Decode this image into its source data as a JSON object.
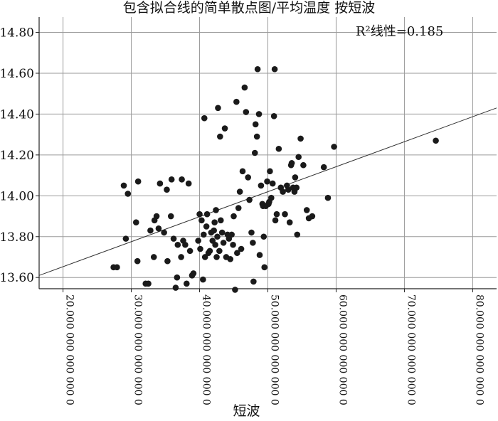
{
  "chart_data": {
    "type": "scatter",
    "title": "包含拟合线的简单散点图/平均温度 按短波",
    "xlabel": "短波",
    "ylabel": "",
    "xlim": [
      16500000000000,
      83500000000000
    ],
    "ylim": [
      13.545,
      14.875
    ],
    "x_ticks": [
      20000000000000,
      30000000000000,
      40000000000000,
      50000000000000,
      60000000000000,
      70000000000000,
      80000000000000
    ],
    "x_tick_labels": [
      "20.000 000 000 000 0",
      "30.000 000 000 000 0",
      "40.000 000 000 000 0",
      "50.000 000 000 000 0",
      "60.000 000 000 000 0",
      "70.000 000 000 000 0",
      "80.000 000 000 000 0"
    ],
    "y_ticks": [
      13.6,
      13.8,
      14.0,
      14.2,
      14.4,
      14.6,
      14.8
    ],
    "y_tick_labels": [
      "13.60",
      "13.80",
      "14.00",
      "14.20",
      "14.40",
      "14.60",
      "14.80"
    ],
    "grid": true,
    "fit_line": {
      "x": [
        16500000000000,
        83500000000000
      ],
      "y": [
        13.61,
        14.43
      ]
    },
    "annotation": "R²线性=0.185",
    "points": [
      {
        "x": 27400000000000,
        "y": 13.65
      },
      {
        "x": 27900000000000,
        "y": 13.65
      },
      {
        "x": 28900000000000,
        "y": 14.05
      },
      {
        "x": 29200000000000,
        "y": 13.79
      },
      {
        "x": 29500000000000,
        "y": 14.01
      },
      {
        "x": 30700000000000,
        "y": 13.87
      },
      {
        "x": 30900000000000,
        "y": 13.68
      },
      {
        "x": 31000000000000,
        "y": 14.07
      },
      {
        "x": 32100000000000,
        "y": 13.57
      },
      {
        "x": 32500000000000,
        "y": 13.57
      },
      {
        "x": 32800000000000,
        "y": 13.83
      },
      {
        "x": 33300000000000,
        "y": 13.7
      },
      {
        "x": 33400000000000,
        "y": 13.88
      },
      {
        "x": 33700000000000,
        "y": 13.9
      },
      {
        "x": 34000000000000,
        "y": 13.84
      },
      {
        "x": 34200000000000,
        "y": 14.06
      },
      {
        "x": 34800000000000,
        "y": 13.82
      },
      {
        "x": 35200000000000,
        "y": 14.03
      },
      {
        "x": 35300000000000,
        "y": 13.68
      },
      {
        "x": 35800000000000,
        "y": 13.9
      },
      {
        "x": 35900000000000,
        "y": 14.08
      },
      {
        "x": 36200000000000,
        "y": 13.79
      },
      {
        "x": 36500000000000,
        "y": 13.55
      },
      {
        "x": 36700000000000,
        "y": 13.6
      },
      {
        "x": 36800000000000,
        "y": 13.76
      },
      {
        "x": 37300000000000,
        "y": 13.7
      },
      {
        "x": 37400000000000,
        "y": 14.08
      },
      {
        "x": 37600000000000,
        "y": 13.78
      },
      {
        "x": 37900000000000,
        "y": 13.76
      },
      {
        "x": 38100000000000,
        "y": 13.57
      },
      {
        "x": 38400000000000,
        "y": 14.06
      },
      {
        "x": 38600000000000,
        "y": 13.73
      },
      {
        "x": 38900000000000,
        "y": 13.61
      },
      {
        "x": 39100000000000,
        "y": 13.62
      },
      {
        "x": 39800000000000,
        "y": 13.78
      },
      {
        "x": 40000000000000,
        "y": 13.91
      },
      {
        "x": 40100000000000,
        "y": 13.74
      },
      {
        "x": 40300000000000,
        "y": 13.88
      },
      {
        "x": 40500000000000,
        "y": 13.59
      },
      {
        "x": 40600000000000,
        "y": 13.81
      },
      {
        "x": 40700000000000,
        "y": 14.38
      },
      {
        "x": 40800000000000,
        "y": 13.7
      },
      {
        "x": 41000000000000,
        "y": 13.85
      },
      {
        "x": 41100000000000,
        "y": 13.91
      },
      {
        "x": 41300000000000,
        "y": 13.72
      },
      {
        "x": 41500000000000,
        "y": 13.73
      },
      {
        "x": 41700000000000,
        "y": 13.82
      },
      {
        "x": 41900000000000,
        "y": 13.78
      },
      {
        "x": 42100000000000,
        "y": 13.83
      },
      {
        "x": 42200000000000,
        "y": 13.87
      },
      {
        "x": 42300000000000,
        "y": 13.76
      },
      {
        "x": 42400000000000,
        "y": 13.93
      },
      {
        "x": 42500000000000,
        "y": 13.7
      },
      {
        "x": 42600000000000,
        "y": 13.8
      },
      {
        "x": 42700000000000,
        "y": 14.43
      },
      {
        "x": 42900000000000,
        "y": 13.73
      },
      {
        "x": 43000000000000,
        "y": 14.29
      },
      {
        "x": 43100000000000,
        "y": 13.88
      },
      {
        "x": 43300000000000,
        "y": 13.82
      },
      {
        "x": 43500000000000,
        "y": 13.77
      },
      {
        "x": 43700000000000,
        "y": 14.33
      },
      {
        "x": 43900000000000,
        "y": 13.7
      },
      {
        "x": 44100000000000,
        "y": 13.81
      },
      {
        "x": 44300000000000,
        "y": 13.79
      },
      {
        "x": 44500000000000,
        "y": 13.69
      },
      {
        "x": 44700000000000,
        "y": 13.81
      },
      {
        "x": 44900000000000,
        "y": 13.76
      },
      {
        "x": 45000000000000,
        "y": 13.9
      },
      {
        "x": 45200000000000,
        "y": 13.54
      },
      {
        "x": 45400000000000,
        "y": 14.46
      },
      {
        "x": 45500000000000,
        "y": 13.72
      },
      {
        "x": 45700000000000,
        "y": 13.94
      },
      {
        "x": 45900000000000,
        "y": 14.02
      },
      {
        "x": 46100000000000,
        "y": 13.74
      },
      {
        "x": 46300000000000,
        "y": 14.12
      },
      {
        "x": 46600000000000,
        "y": 14.53
      },
      {
        "x": 46800000000000,
        "y": 14.41
      },
      {
        "x": 47100000000000,
        "y": 14.09
      },
      {
        "x": 47300000000000,
        "y": 13.98
      },
      {
        "x": 47600000000000,
        "y": 13.82
      },
      {
        "x": 47800000000000,
        "y": 13.77
      },
      {
        "x": 47900000000000,
        "y": 13.58
      },
      {
        "x": 48100000000000,
        "y": 14.21
      },
      {
        "x": 48200000000000,
        "y": 14.35
      },
      {
        "x": 48400000000000,
        "y": 14.29
      },
      {
        "x": 48500000000000,
        "y": 14.62
      },
      {
        "x": 48700000000000,
        "y": 14.4
      },
      {
        "x": 48800000000000,
        "y": 13.71
      },
      {
        "x": 49000000000000,
        "y": 14.05
      },
      {
        "x": 49200000000000,
        "y": 13.96
      },
      {
        "x": 49300000000000,
        "y": 13.95
      },
      {
        "x": 49400000000000,
        "y": 13.8
      },
      {
        "x": 49500000000000,
        "y": 13.65
      },
      {
        "x": 49700000000000,
        "y": 13.95
      },
      {
        "x": 49900000000000,
        "y": 14.07
      },
      {
        "x": 50100000000000,
        "y": 13.96
      },
      {
        "x": 50200000000000,
        "y": 13.97
      },
      {
        "x": 50300000000000,
        "y": 14.12
      },
      {
        "x": 50500000000000,
        "y": 13.99
      },
      {
        "x": 50700000000000,
        "y": 14.06
      },
      {
        "x": 50900000000000,
        "y": 14.39
      },
      {
        "x": 51000000000000,
        "y": 14.62
      },
      {
        "x": 51100000000000,
        "y": 13.88
      },
      {
        "x": 51300000000000,
        "y": 13.91
      },
      {
        "x": 51600000000000,
        "y": 14.23
      },
      {
        "x": 51900000000000,
        "y": 14.04
      },
      {
        "x": 52200000000000,
        "y": 14.02
      },
      {
        "x": 52500000000000,
        "y": 13.91
      },
      {
        "x": 52800000000000,
        "y": 14.05
      },
      {
        "x": 53000000000000,
        "y": 14.03
      },
      {
        "x": 53200000000000,
        "y": 13.87
      },
      {
        "x": 53400000000000,
        "y": 14.15
      },
      {
        "x": 53500000000000,
        "y": 14.16
      },
      {
        "x": 53700000000000,
        "y": 14.04
      },
      {
        "x": 53900000000000,
        "y": 14.02
      },
      {
        "x": 54000000000000,
        "y": 14.09
      },
      {
        "x": 54200000000000,
        "y": 14.04
      },
      {
        "x": 54300000000000,
        "y": 13.81
      },
      {
        "x": 54500000000000,
        "y": 14.19
      },
      {
        "x": 54800000000000,
        "y": 14.28
      },
      {
        "x": 55200000000000,
        "y": 14.15
      },
      {
        "x": 55700000000000,
        "y": 13.93
      },
      {
        "x": 56000000000000,
        "y": 13.89
      },
      {
        "x": 56500000000000,
        "y": 13.9
      },
      {
        "x": 58200000000000,
        "y": 14.14
      },
      {
        "x": 58800000000000,
        "y": 13.99
      },
      {
        "x": 59700000000000,
        "y": 14.24
      },
      {
        "x": 74600000000000,
        "y": 14.27
      }
    ]
  }
}
